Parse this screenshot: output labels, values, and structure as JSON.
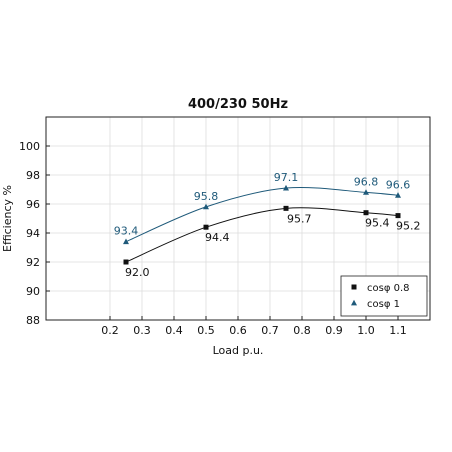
{
  "chart_data": {
    "type": "line",
    "title": "400/230 50Hz",
    "xlabel": "Load p.u.",
    "ylabel": "Efficiency %",
    "xlim": [
      0.0,
      1.2
    ],
    "ylim": [
      88,
      102
    ],
    "xticks": [
      0.2,
      0.3,
      0.4,
      0.5,
      0.6,
      0.7,
      0.8,
      0.9,
      1.0,
      1.1
    ],
    "xtick_labels": [
      "0.2",
      "0.3",
      "0.4",
      "0.5",
      "0.6",
      "0.7",
      "0.8",
      "0.9",
      "1.0",
      "1.1"
    ],
    "yticks": [
      88,
      90,
      92,
      94,
      96,
      98,
      100
    ],
    "ytick_labels": [
      "88",
      "90",
      "92",
      "94",
      "96",
      "98",
      "100"
    ],
    "grid": true,
    "legend_position": "bottom-right",
    "x": [
      0.25,
      0.5,
      0.75,
      1.0,
      1.1
    ],
    "series": [
      {
        "name": "cosφ 0.8",
        "values": [
          92.0,
          94.4,
          95.7,
          95.4,
          95.2
        ],
        "labels": [
          "92.0",
          "94.4",
          "95.7",
          "95.4",
          "95.2"
        ],
        "color": "#111111",
        "marker": "square"
      },
      {
        "name": "cosφ 1",
        "values": [
          93.4,
          95.8,
          97.1,
          96.8,
          96.6
        ],
        "labels": [
          "93.4",
          "95.8",
          "97.1",
          "96.8",
          "96.6"
        ],
        "color": "#1f5a7a",
        "marker": "triangle"
      }
    ]
  }
}
